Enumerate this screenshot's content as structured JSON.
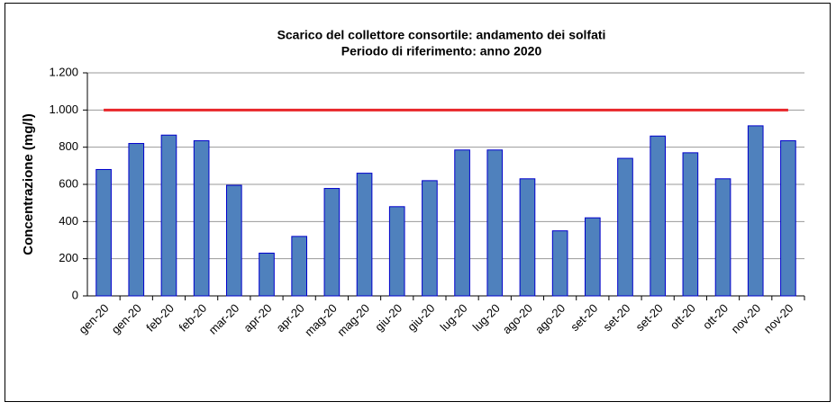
{
  "chart_data": {
    "type": "bar",
    "title": "Scarico del collettore consortile: andamento dei solfati",
    "subtitle": "Periodo di riferimento: anno 2020",
    "y_label": "Concentrazione (mg/l)",
    "categories": [
      "gen-20",
      "gen-20",
      "feb-20",
      "feb-20",
      "mar-20",
      "apr-20",
      "apr-20",
      "mag-20",
      "mag-20",
      "giu-20",
      "giu-20",
      "lug-20",
      "lug-20",
      "ago-20",
      "ago-20",
      "set-20",
      "set-20",
      "set-20",
      "ott-20",
      "ott-20",
      "nov-20",
      "nov-20"
    ],
    "values": [
      680,
      820,
      865,
      835,
      595,
      230,
      320,
      578,
      660,
      480,
      620,
      785,
      785,
      630,
      350,
      420,
      740,
      860,
      770,
      630,
      915,
      835
    ],
    "color": "#4f81bd",
    "limit": {
      "value": 1000,
      "color": "#e8262a"
    },
    "ylim": [
      0,
      1200
    ],
    "yticks": [
      0,
      200,
      400,
      600,
      800,
      {
        "value": 1000,
        "label": "1.000"
      },
      {
        "value": 1200,
        "label": "1.200"
      }
    ],
    "grid": true
  }
}
